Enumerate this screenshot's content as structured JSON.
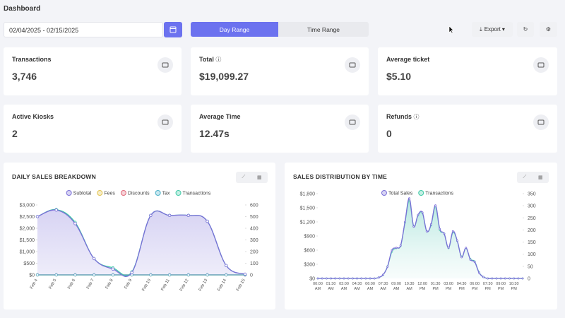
{
  "header": {
    "title": "Dashboard",
    "date_range": "02/04/2025 - 02/15/2025",
    "tabs": [
      "Day Range",
      "Time Range"
    ],
    "export": "Export"
  },
  "cards": [
    {
      "label": "Transactions",
      "value": "3,746"
    },
    {
      "label": "Total",
      "value": "$19,099.27"
    },
    {
      "label": "Average ticket",
      "value": "$5.10"
    },
    {
      "label": "Active Kiosks",
      "value": "2"
    },
    {
      "label": "Average Time",
      "value": "12.47s"
    },
    {
      "label": "Refunds",
      "value": "0"
    }
  ],
  "chart_data": [
    {
      "type": "line",
      "title": "DAILY SALES BREAKDOWN",
      "legend": "top",
      "grid": false,
      "categories": [
        "Feb 4",
        "Feb 5",
        "Feb 6",
        "Feb 7",
        "Feb 8",
        "Feb 9",
        "Feb 10",
        "Feb 11",
        "Feb 12",
        "Feb 13",
        "Feb 14",
        "Feb 15"
      ],
      "series": [
        {
          "name": "Subtotal",
          "color": "#7b6fd8",
          "fill": true,
          "values": [
            2500,
            2780,
            2200,
            700,
            250,
            100,
            2550,
            2550,
            2550,
            2300,
            400,
            30
          ]
        },
        {
          "name": "Fees",
          "color": "#e2c24c",
          "values": [
            0,
            0,
            0,
            0,
            0,
            0,
            0,
            0,
            0,
            0,
            0,
            0
          ]
        },
        {
          "name": "Discounts",
          "color": "#e06b7c",
          "values": [
            0,
            0,
            0,
            0,
            0,
            0,
            0,
            0,
            0,
            0,
            0,
            0
          ]
        },
        {
          "name": "Tax",
          "color": "#4cb1c9",
          "values": [
            0,
            0,
            0,
            0,
            0,
            0,
            0,
            0,
            0,
            0,
            0,
            0
          ]
        },
        {
          "name": "Transactions",
          "color": "#3ec9a6",
          "axis": "y2",
          "values": [
            500,
            560,
            450,
            140,
            60,
            25,
            510,
            510,
            510,
            460,
            80,
            5
          ]
        }
      ],
      "ylim": [
        0,
        3000
      ],
      "yticks": [
        {
          "value": 0,
          "label": "$0"
        },
        {
          "value": 500,
          "label": "$500"
        },
        {
          "value": 1000,
          "label": "$1,000"
        },
        {
          "value": 1500,
          "label": "$1,500"
        },
        {
          "value": 2000,
          "label": "$2,000"
        },
        {
          "value": 2500,
          "label": "$2,500"
        },
        {
          "value": 3000,
          "label": "$3,000"
        }
      ],
      "y2lim": [
        0,
        600
      ],
      "y2ticks": [
        0,
        100,
        200,
        300,
        400,
        500,
        600
      ]
    },
    {
      "type": "line",
      "title": "SALES DISTRIBUTION BY TIME",
      "legend": "top",
      "grid": false,
      "categories": [
        "00:00 AM",
        null,
        null,
        "01:30 AM",
        null,
        null,
        "03:00 AM",
        null,
        null,
        "04:30 AM",
        null,
        null,
        "06:00 AM",
        null,
        null,
        "07:30 AM",
        null,
        null,
        "09:00 AM",
        null,
        null,
        "10:30 AM",
        null,
        null,
        "12:00 PM",
        null,
        null,
        "01:30 PM",
        null,
        null,
        "03:00 PM",
        null,
        null,
        "04:30 PM",
        null,
        null,
        "06:00 PM",
        null,
        null,
        "07:30 PM",
        null,
        null,
        "09:00 PM",
        null,
        null,
        "10:30 PM",
        null,
        null
      ],
      "series": [
        {
          "name": "Total Sales",
          "color": "#7b6fd8",
          "fill": true,
          "values": [
            0,
            0,
            0,
            0,
            0,
            0,
            0,
            0,
            0,
            0,
            0,
            0,
            0,
            0,
            20,
            80,
            250,
            600,
            650,
            700,
            1200,
            1700,
            1100,
            1350,
            1400,
            1000,
            1150,
            1550,
            1050,
            950,
            650,
            1000,
            800,
            450,
            650,
            400,
            350,
            120,
            30,
            0,
            0,
            0,
            0,
            0,
            0,
            0,
            0,
            0
          ]
        },
        {
          "name": "Transactions",
          "color": "#3ec9a6",
          "axis": "y2",
          "values": [
            0,
            0,
            0,
            0,
            0,
            0,
            0,
            0,
            0,
            0,
            0,
            0,
            0,
            0,
            4,
            15,
            50,
            110,
            125,
            135,
            230,
            320,
            215,
            260,
            270,
            195,
            220,
            295,
            200,
            185,
            125,
            190,
            155,
            90,
            125,
            80,
            70,
            25,
            6,
            0,
            0,
            0,
            0,
            0,
            0,
            0,
            0,
            0
          ]
        }
      ],
      "ylim": [
        0,
        1800
      ],
      "yticks": [
        {
          "value": 0,
          "label": "$0"
        },
        {
          "value": 300,
          "label": "$300"
        },
        {
          "value": 600,
          "label": "$600"
        },
        {
          "value": 900,
          "label": "$900"
        },
        {
          "value": 1200,
          "label": "$1,200"
        },
        {
          "value": 1500,
          "label": "$1,500"
        },
        {
          "value": 1800,
          "label": "$1,800"
        }
      ],
      "y2lim": [
        0,
        350
      ],
      "y2ticks": [
        0,
        50,
        100,
        150,
        200,
        250,
        300,
        350
      ]
    }
  ]
}
